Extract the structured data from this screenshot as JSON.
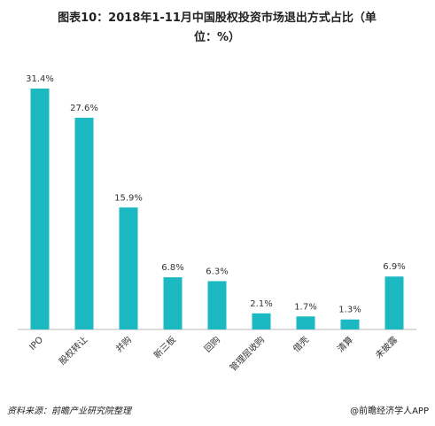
{
  "chart_data": {
    "type": "bar",
    "title": "图表10：2018年1-11月中国股权投资市场退出方式占比（单",
    "title_line2": "位：%）",
    "categories": [
      "IPO",
      "股权转让",
      "并购",
      "新三板",
      "回购",
      "管理层收购",
      "借壳",
      "清算",
      "未披露"
    ],
    "values": [
      31.4,
      27.6,
      15.9,
      6.8,
      6.3,
      2.1,
      1.7,
      1.3,
      6.9
    ],
    "value_labels": [
      "31.4%",
      "27.6%",
      "15.9%",
      "6.8%",
      "6.3%",
      "2.1%",
      "1.7%",
      "1.3%",
      "6.9%"
    ],
    "color": "#1cb9c2",
    "source": "资料来源：前瞻产业研究院整理",
    "credit": "@前瞻经济学人APP"
  }
}
